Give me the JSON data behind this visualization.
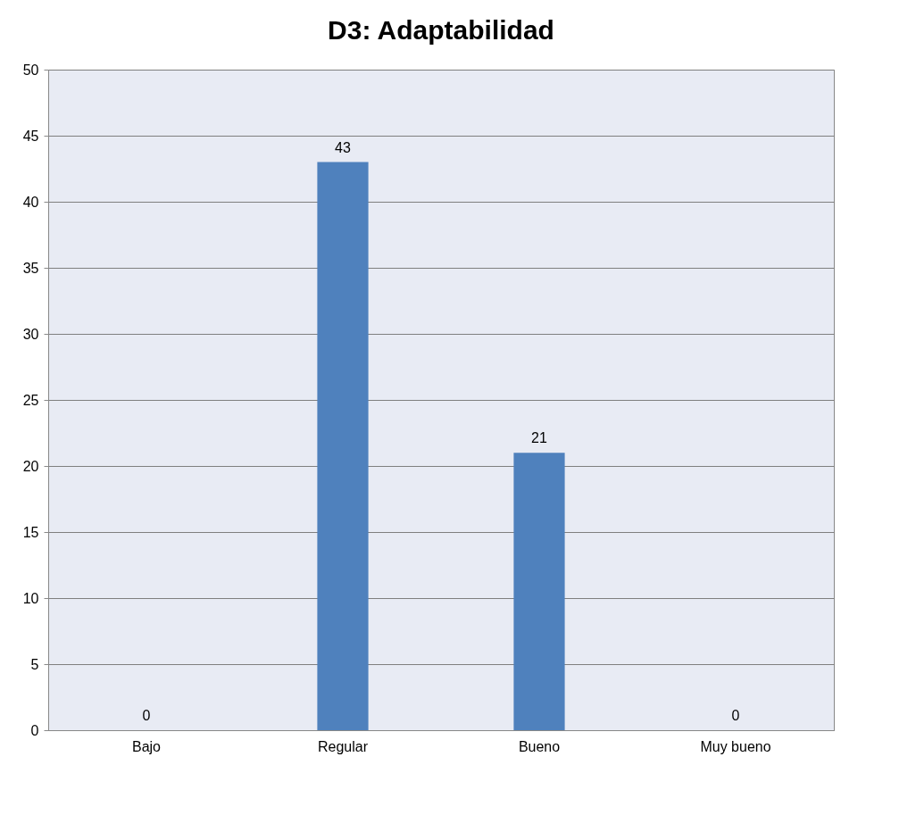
{
  "chart_data": {
    "type": "bar",
    "title": "D3: Adaptabilidad",
    "categories": [
      "Bajo",
      "Regular",
      "Bueno",
      "Muy bueno"
    ],
    "values": [
      0,
      43,
      21,
      0
    ],
    "color": "#4f81bd",
    "ylim": [
      0,
      50
    ],
    "yticks": [
      0,
      5,
      10,
      15,
      20,
      25,
      30,
      35,
      40,
      45,
      50
    ],
    "grid": "y",
    "data_labels": true
  }
}
